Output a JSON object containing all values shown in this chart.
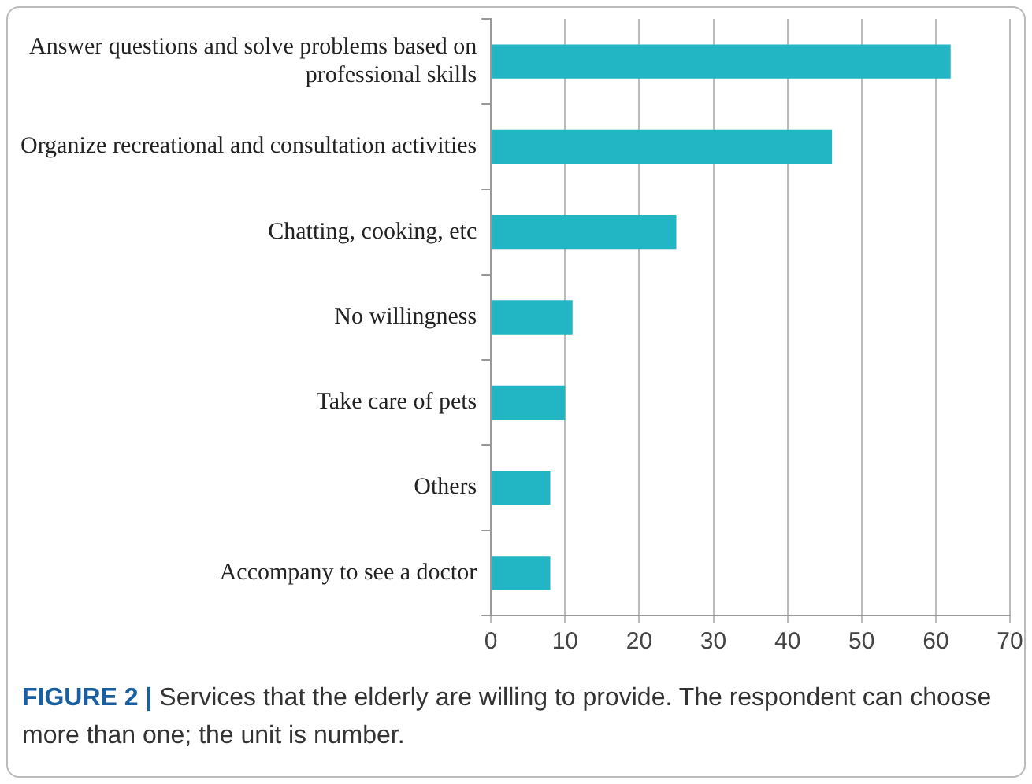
{
  "chart_data": {
    "type": "bar",
    "orientation": "horizontal",
    "categories": [
      "Answer questions and solve problems based on professional skills",
      "Organize recreational and consultation activities",
      "Chatting, cooking, etc",
      "No willingness",
      "Take care of pets",
      "Others",
      "Accompany to see a doctor"
    ],
    "values": [
      62,
      46,
      25,
      11,
      10,
      8,
      8
    ],
    "color": "#22b5c4",
    "xlim": [
      0,
      70
    ],
    "xticks": [
      0,
      10,
      20,
      30,
      40,
      50,
      60,
      70
    ],
    "grid": "x",
    "annotations": [
      "FIGURE 2 | Services that the elderly are willing to provide. The respondent can choose more than one; the unit is number."
    ]
  }
}
